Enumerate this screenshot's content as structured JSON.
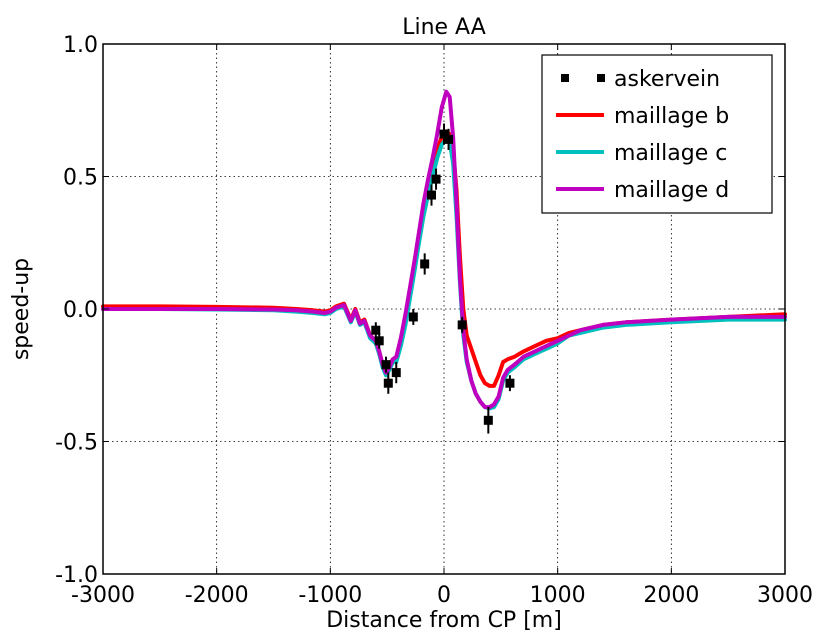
{
  "chart_data": {
    "type": "line",
    "title": "Line AA",
    "xlabel": "Distance from CP [m]",
    "ylabel": "speed-up",
    "xlim": [
      -3000,
      3000
    ],
    "ylim": [
      -1.0,
      1.0
    ],
    "xticks": [
      -3000,
      -2000,
      -1000,
      0,
      1000,
      2000,
      3000
    ],
    "xtick_labels": [
      "-3000",
      "-2000",
      "-1000",
      "0",
      "1000",
      "2000",
      "3000"
    ],
    "yticks": [
      -1.0,
      -0.5,
      0.0,
      0.5,
      1.0
    ],
    "ytick_labels": [
      "-1.0",
      "-0.5",
      "0.0",
      "0.5",
      "1.0"
    ],
    "grid": true,
    "legend_position": "top-right",
    "series": [
      {
        "name": "maillage b",
        "color": "#ff0000",
        "x": [
          -3000,
          -2500,
          -2000,
          -1500,
          -1300,
          -1150,
          -1050,
          -1000,
          -950,
          -880,
          -820,
          -780,
          -740,
          -700,
          -650,
          -600,
          -570,
          -540,
          -510,
          -480,
          -450,
          -420,
          -380,
          -340,
          -300,
          -260,
          -220,
          -180,
          -140,
          -100,
          -60,
          -20,
          20,
          50,
          80,
          110,
          140,
          170,
          200,
          240,
          280,
          320,
          360,
          400,
          440,
          480,
          520,
          560,
          620,
          700,
          800,
          900,
          1000,
          1100,
          1200,
          1400,
          1600,
          2000,
          2500,
          3000
        ],
        "y": [
          0.01,
          0.01,
          0.008,
          0.005,
          0.0,
          -0.005,
          -0.01,
          -0.005,
          0.01,
          0.02,
          -0.04,
          0.0,
          -0.05,
          -0.04,
          -0.1,
          -0.12,
          -0.16,
          -0.21,
          -0.23,
          -0.21,
          -0.19,
          -0.19,
          -0.13,
          -0.05,
          0.05,
          0.15,
          0.26,
          0.36,
          0.44,
          0.52,
          0.6,
          0.65,
          0.67,
          0.66,
          0.6,
          0.45,
          0.2,
          0.0,
          -0.1,
          -0.15,
          -0.2,
          -0.25,
          -0.28,
          -0.29,
          -0.29,
          -0.25,
          -0.2,
          -0.19,
          -0.18,
          -0.16,
          -0.14,
          -0.12,
          -0.11,
          -0.09,
          -0.08,
          -0.06,
          -0.05,
          -0.04,
          -0.03,
          -0.02
        ]
      },
      {
        "name": "maillage c",
        "color": "#00bfbf",
        "x": [
          -3000,
          -2500,
          -2000,
          -1500,
          -1300,
          -1150,
          -1050,
          -1000,
          -950,
          -880,
          -820,
          -780,
          -740,
          -700,
          -650,
          -600,
          -570,
          -540,
          -510,
          -480,
          -450,
          -420,
          -380,
          -340,
          -300,
          -260,
          -220,
          -180,
          -140,
          -100,
          -60,
          -20,
          20,
          50,
          80,
          110,
          140,
          170,
          200,
          240,
          280,
          320,
          360,
          400,
          440,
          480,
          520,
          560,
          620,
          700,
          800,
          900,
          1000,
          1100,
          1200,
          1400,
          1600,
          2000,
          2500,
          3000
        ],
        "y": [
          0.0,
          0.0,
          -0.002,
          -0.005,
          -0.01,
          -0.015,
          -0.02,
          -0.015,
          0.0,
          0.01,
          -0.05,
          -0.01,
          -0.06,
          -0.05,
          -0.11,
          -0.13,
          -0.17,
          -0.22,
          -0.25,
          -0.23,
          -0.2,
          -0.2,
          -0.14,
          -0.06,
          0.04,
          0.14,
          0.25,
          0.35,
          0.43,
          0.5,
          0.57,
          0.62,
          0.64,
          0.63,
          0.55,
          0.35,
          0.1,
          -0.1,
          -0.2,
          -0.27,
          -0.32,
          -0.35,
          -0.37,
          -0.375,
          -0.37,
          -0.34,
          -0.27,
          -0.24,
          -0.22,
          -0.19,
          -0.17,
          -0.15,
          -0.13,
          -0.1,
          -0.09,
          -0.07,
          -0.06,
          -0.05,
          -0.04,
          -0.04
        ]
      },
      {
        "name": "maillage d",
        "color": "#bf00bf",
        "x": [
          -3000,
          -2500,
          -2000,
          -1500,
          -1300,
          -1150,
          -1050,
          -1000,
          -950,
          -880,
          -820,
          -780,
          -740,
          -700,
          -650,
          -600,
          -570,
          -540,
          -510,
          -480,
          -450,
          -420,
          -380,
          -340,
          -300,
          -260,
          -220,
          -180,
          -140,
          -100,
          -60,
          -20,
          20,
          50,
          80,
          110,
          140,
          170,
          200,
          240,
          280,
          320,
          360,
          400,
          440,
          480,
          520,
          560,
          620,
          700,
          800,
          900,
          1000,
          1100,
          1200,
          1400,
          1600,
          2000,
          2500,
          3000
        ],
        "y": [
          0.0,
          0.0,
          0.0,
          -0.002,
          -0.005,
          -0.01,
          -0.015,
          -0.01,
          0.005,
          0.015,
          -0.045,
          -0.005,
          -0.055,
          -0.045,
          -0.1,
          -0.12,
          -0.16,
          -0.21,
          -0.24,
          -0.22,
          -0.19,
          -0.18,
          -0.11,
          -0.02,
          0.08,
          0.18,
          0.29,
          0.4,
          0.49,
          0.57,
          0.66,
          0.76,
          0.82,
          0.8,
          0.65,
          0.4,
          0.12,
          -0.08,
          -0.19,
          -0.27,
          -0.32,
          -0.35,
          -0.37,
          -0.37,
          -0.36,
          -0.33,
          -0.26,
          -0.23,
          -0.21,
          -0.18,
          -0.16,
          -0.14,
          -0.12,
          -0.1,
          -0.08,
          -0.06,
          -0.05,
          -0.04,
          -0.03,
          -0.03
        ]
      }
    ],
    "observations": {
      "name": "askervein",
      "color": "#000000",
      "points": [
        {
          "x": -600,
          "y": -0.08,
          "err": 0.03
        },
        {
          "x": -570,
          "y": -0.12,
          "err": 0.03
        },
        {
          "x": -510,
          "y": -0.21,
          "err": 0.03
        },
        {
          "x": -490,
          "y": -0.28,
          "err": 0.04
        },
        {
          "x": -420,
          "y": -0.24,
          "err": 0.04
        },
        {
          "x": -270,
          "y": -0.03,
          "err": 0.03
        },
        {
          "x": -170,
          "y": 0.17,
          "err": 0.04
        },
        {
          "x": -110,
          "y": 0.43,
          "err": 0.04
        },
        {
          "x": -70,
          "y": 0.49,
          "err": 0.04
        },
        {
          "x": 0,
          "y": 0.66,
          "err": 0.04
        },
        {
          "x": 40,
          "y": 0.64,
          "err": 0.04
        },
        {
          "x": 160,
          "y": -0.06,
          "err": 0.03
        },
        {
          "x": 390,
          "y": -0.42,
          "err": 0.05
        },
        {
          "x": 580,
          "y": -0.28,
          "err": 0.03
        }
      ]
    }
  }
}
